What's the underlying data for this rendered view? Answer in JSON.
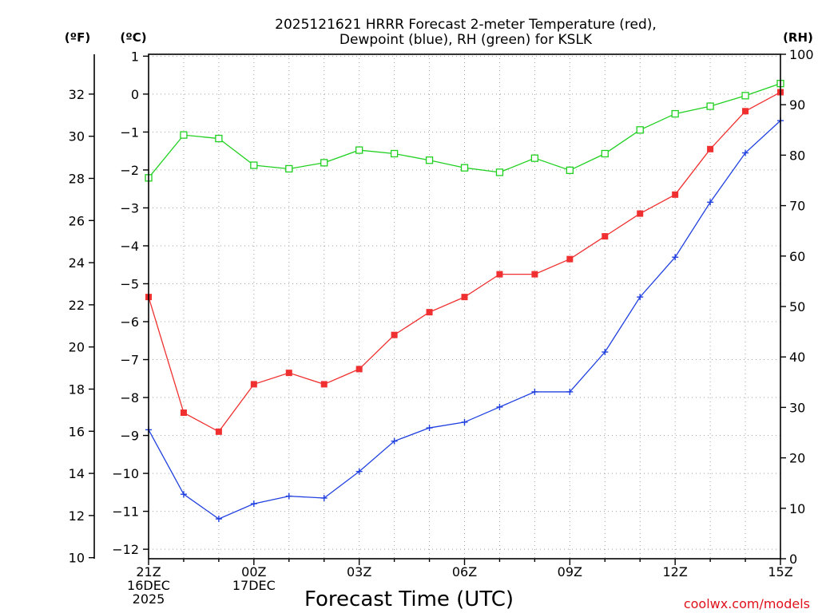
{
  "title_line1": "2025121621 HRRR Forecast 2-meter Temperature (red),",
  "title_line2": "Dewpoint (blue), RH (green) for KSLK",
  "left_unit_f": "(ºF)",
  "left_unit_c": "(ºC)",
  "right_unit": "(RH)",
  "credit": "coolwx.com/models",
  "colors": {
    "temperature": "#f03030",
    "dewpoint": "#2040e0",
    "rh": "#20d020",
    "grid": "#a0a0a0",
    "credit": "#e0101a"
  },
  "chart_data": {
    "type": "line",
    "title": "2025121621 HRRR Forecast 2-meter Temperature (red), Dewpoint (blue), RH (green) for KSLK",
    "xlabel": "Forecast Time (UTC)",
    "x": [
      0,
      1,
      2,
      3,
      4,
      5,
      6,
      7,
      8,
      9,
      10,
      11,
      12,
      13,
      14,
      15,
      16,
      17,
      18
    ],
    "x_ticks": [
      {
        "x": 0,
        "lines": [
          "21Z",
          "16DEC",
          "2025"
        ]
      },
      {
        "x": 3,
        "lines": [
          "00Z",
          "17DEC"
        ]
      },
      {
        "x": 6,
        "lines": [
          "03Z"
        ]
      },
      {
        "x": 9,
        "lines": [
          "06Z"
        ]
      },
      {
        "x": 12,
        "lines": [
          "09Z"
        ]
      },
      {
        "x": 15,
        "lines": [
          "12Z"
        ]
      },
      {
        "x": 18,
        "lines": [
          "15Z"
        ]
      }
    ],
    "y_left_celsius": {
      "label": "(ºC)",
      "range": [
        -12.25,
        1.05
      ],
      "ticks": [
        1,
        0,
        -1,
        -2,
        -3,
        -4,
        -5,
        -6,
        -7,
        -8,
        -9,
        -10,
        -11,
        -12
      ]
    },
    "y_left_fahrenheit": {
      "label": "(ºF)",
      "ticks": [
        32,
        30,
        28,
        26,
        24,
        22,
        20,
        18,
        16,
        14,
        12,
        10
      ]
    },
    "y_right_rh": {
      "label": "(RH)",
      "range": [
        0,
        100
      ],
      "ticks": [
        0,
        10,
        20,
        30,
        40,
        50,
        60,
        70,
        80,
        90,
        100
      ]
    },
    "grid": true,
    "series": [
      {
        "name": "Temperature",
        "axis": "celsius",
        "marker": "filled-square",
        "values": [
          -5.35,
          -8.4,
          -8.9,
          -7.65,
          -7.35,
          -7.65,
          -7.25,
          -6.35,
          -5.75,
          -5.35,
          -4.75,
          -4.75,
          -4.35,
          -3.75,
          -3.15,
          -2.65,
          -1.45,
          -0.45,
          0.05
        ]
      },
      {
        "name": "Dewpoint",
        "axis": "celsius",
        "marker": "plus",
        "values": [
          -8.85,
          -10.55,
          -11.2,
          -10.8,
          -10.6,
          -10.65,
          -9.95,
          -9.15,
          -8.8,
          -8.65,
          -8.25,
          -7.85,
          -7.85,
          -6.8,
          -5.35,
          -4.3,
          -2.85,
          -1.55,
          -0.7
        ]
      },
      {
        "name": "RH",
        "axis": "rh",
        "marker": "open-square",
        "values": [
          75.5,
          84,
          83.3,
          78,
          77.3,
          78.5,
          81,
          80.3,
          79,
          77.5,
          76.6,
          79.4,
          77,
          80.3,
          85,
          88.2,
          89.7,
          91.8,
          94.2
        ]
      }
    ]
  }
}
